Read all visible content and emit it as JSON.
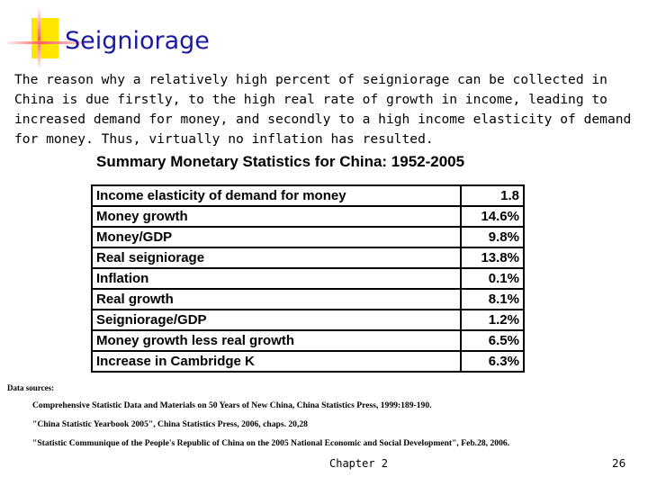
{
  "slide": {
    "title": "Seigniorage",
    "body": "The reason why a relatively high percent of seigniorage can be collected in China is due firstly, to the high real rate of growth in income, leading to increased demand for money, and secondly to a high income elasticity of demand for money.  Thus, virtually no inflation has resulted."
  },
  "table": {
    "title": "Summary Monetary Statistics for China: 1952-2005",
    "rows": [
      {
        "label": "Income elasticity of demand for money",
        "value": "1.8"
      },
      {
        "label": "Money growth",
        "value": "14.6%"
      },
      {
        "label": "Money/GDP",
        "value": "9.8%"
      },
      {
        "label": "Real seigniorage",
        "value": "13.8%"
      },
      {
        "label": "Inflation",
        "value": "0.1%"
      },
      {
        "label": "Real growth",
        "value": "8.1%"
      },
      {
        "label": "Seigniorage/GDP",
        "value": "1.2%"
      },
      {
        "label": "Money growth less real growth",
        "value": "6.5%"
      },
      {
        "label": "Increase in Cambridge K",
        "value": "6.3%"
      }
    ]
  },
  "sources": {
    "label": "Data sources:",
    "items": [
      "Comprehensive Statistic Data and Materials on 50 Years of New China, China Statistics Press, 1999:189-190.",
      "\"China Statistic Yearbook 2005\", China Statistics Press, 2006, chaps. 20,28",
      "\"Statistic Communique of the People's Republic of China on the 2005 National Economic and Social Development\", Feb.28, 2006."
    ]
  },
  "footer": {
    "chapter": "Chapter 2",
    "page": "26"
  }
}
